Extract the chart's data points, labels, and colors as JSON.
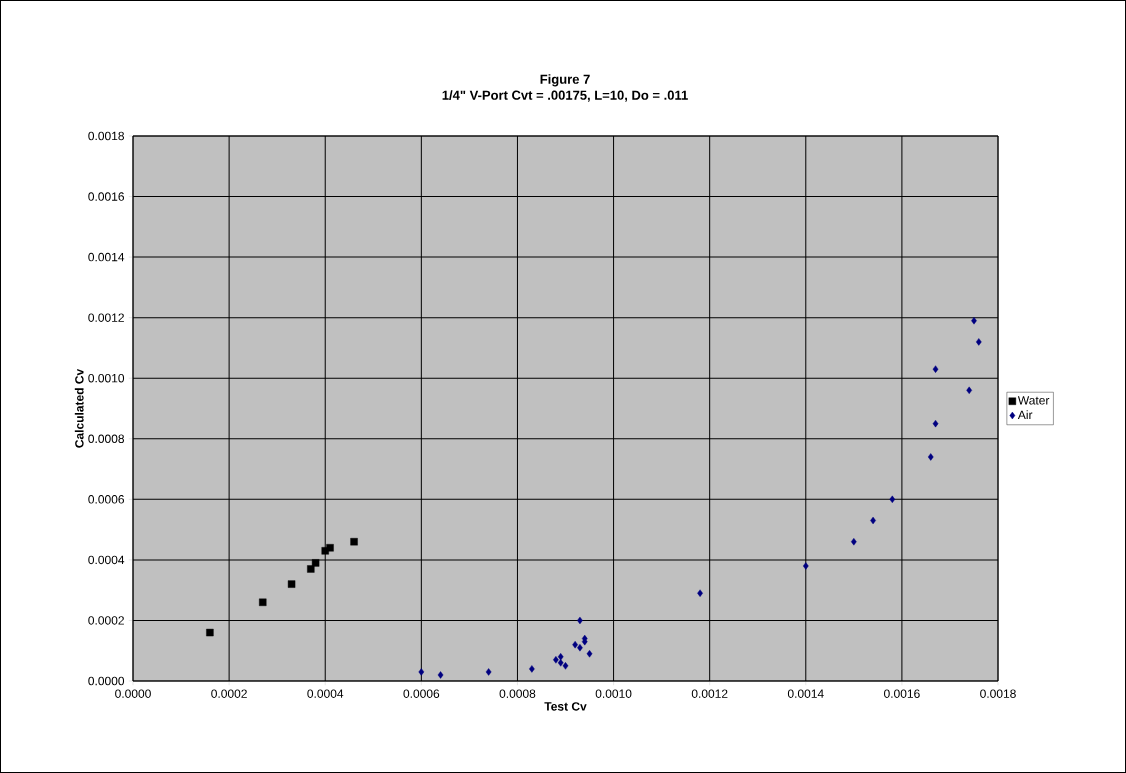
{
  "chart_data": {
    "type": "scatter",
    "title": "Figure 7",
    "subtitle": "1/4\" V-Port Cvt = .00175, L=10, Do = .011",
    "xlabel": "Test Cv",
    "ylabel": "Calculated Cv",
    "xlim": [
      0,
      0.0018
    ],
    "ylim": [
      0,
      0.0018
    ],
    "xticks": [
      {
        "value": 0,
        "label": "0.0000"
      },
      {
        "value": 0.0002,
        "label": "0.0002"
      },
      {
        "value": 0.0004,
        "label": "0.0004"
      },
      {
        "value": 0.0006,
        "label": "0.0006"
      },
      {
        "value": 0.0008,
        "label": "0.0008"
      },
      {
        "value": 0.001,
        "label": "0.0010"
      },
      {
        "value": 0.0012,
        "label": "0.0012"
      },
      {
        "value": 0.0014,
        "label": "0.0014"
      },
      {
        "value": 0.0016,
        "label": "0.0016"
      },
      {
        "value": 0.0018,
        "label": "0.0018"
      }
    ],
    "yticks": [
      {
        "value": 0,
        "label": "0.0000"
      },
      {
        "value": 0.0002,
        "label": "0.0002"
      },
      {
        "value": 0.0004,
        "label": "0.0004"
      },
      {
        "value": 0.0006,
        "label": "0.0006"
      },
      {
        "value": 0.0008,
        "label": "0.0008"
      },
      {
        "value": 0.001,
        "label": "0.0010"
      },
      {
        "value": 0.0012,
        "label": "0.0012"
      },
      {
        "value": 0.0014,
        "label": "0.0014"
      },
      {
        "value": 0.0016,
        "label": "0.0016"
      },
      {
        "value": 0.0018,
        "label": "0.0018"
      }
    ],
    "grid": true,
    "legend": "right",
    "series": [
      {
        "name": "Water",
        "color": "#000000",
        "marker": "square",
        "x": [
          0.00016,
          0.00027,
          0.00033,
          0.00037,
          0.00038,
          0.0004,
          0.00041,
          0.00046
        ],
        "values": [
          0.00016,
          0.00026,
          0.00032,
          0.00037,
          0.00039,
          0.00043,
          0.00044,
          0.00046
        ]
      },
      {
        "name": "Air",
        "color": "#000080",
        "marker": "diamond",
        "x": [
          0.0006,
          0.00064,
          0.00074,
          0.00083,
          0.00088,
          0.00089,
          0.00089,
          0.0009,
          0.00092,
          0.00093,
          0.00093,
          0.00094,
          0.00094,
          0.00095,
          0.00118,
          0.0014,
          0.0015,
          0.00154,
          0.00158,
          0.00166,
          0.00167,
          0.00167,
          0.00174,
          0.00175,
          0.00176
        ],
        "values": [
          3e-05,
          2e-05,
          3e-05,
          4e-05,
          7e-05,
          6e-05,
          8e-05,
          5e-05,
          0.00012,
          0.0002,
          0.00011,
          0.00013,
          0.00014,
          9e-05,
          0.00029,
          0.00038,
          0.00046,
          0.00053,
          0.0006,
          0.00074,
          0.00085,
          0.00103,
          0.00096,
          0.00119,
          0.00112
        ]
      }
    ]
  }
}
